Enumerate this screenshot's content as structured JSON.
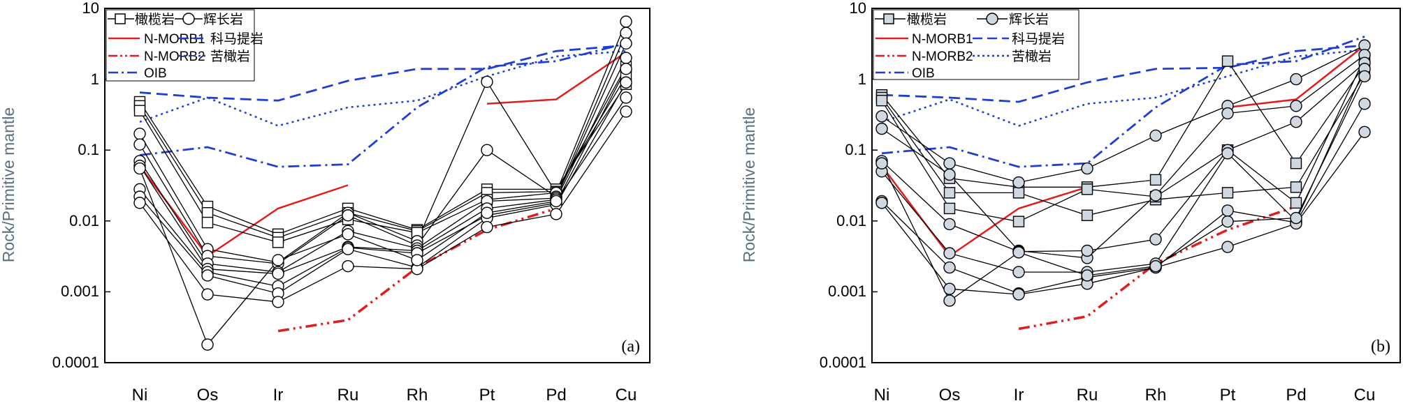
{
  "colors": {
    "axis": "#000000",
    "sample_line": "#000000",
    "marker_fill_a": "#ffffff",
    "marker_fill_b": "#d0d8e2",
    "nmorb": "#e21d1d",
    "blue": "#1f3fd0",
    "ylabel": "#5a6e7f"
  },
  "chart_data": [
    {
      "id": "a",
      "panel_label": "(a)",
      "type": "line",
      "ylabel": "Rock/Primitive mantle",
      "yscale": "log",
      "ylim": [
        0.0001,
        10
      ],
      "yticks": [
        "10",
        "1",
        "0.1",
        "0.01",
        "0.001",
        "0.0001"
      ],
      "categories": [
        "Ni",
        "Os",
        "Ir",
        "Ru",
        "Rh",
        "Pt",
        "Pd",
        "Cu"
      ],
      "legend": [
        {
          "key": "peridotite",
          "label": "橄榄岩",
          "style": "square"
        },
        {
          "key": "gabbro",
          "label": "辉长岩",
          "style": "circle"
        },
        {
          "key": "nmorb1",
          "label": "N-MORB1",
          "style": "red-solid"
        },
        {
          "key": "komatiite",
          "label": "科马提岩",
          "style": "blue-dash"
        },
        {
          "key": "nmorb2",
          "label": "N-MORB2",
          "style": "red-dashdotdot"
        },
        {
          "key": "picrite",
          "label": "苦橄岩",
          "style": "blue-dot"
        },
        {
          "key": "oib",
          "label": "OIB",
          "style": "blue-dashdot"
        }
      ],
      "reference_series": [
        {
          "name": "N-MORB1",
          "style": "red-solid",
          "values": [
            0.06,
            0.0032,
            0.015,
            0.032,
            null,
            0.45,
            0.52,
            2.4
          ]
        },
        {
          "name": "N-MORB2",
          "style": "red-dashdotdot",
          "values": [
            null,
            null,
            0.00028,
            0.0004,
            0.0022,
            0.0075,
            0.015,
            null
          ]
        },
        {
          "name": "科马提岩",
          "style": "blue-dash",
          "values": [
            0.65,
            0.55,
            0.5,
            0.95,
            1.4,
            1.4,
            2.5,
            3.0
          ]
        },
        {
          "name": "苦橄岩",
          "style": "blue-dot",
          "values": [
            0.25,
            0.55,
            0.22,
            0.4,
            0.5,
            1.1,
            2.1,
            2.5
          ]
        },
        {
          "name": "OIB",
          "style": "blue-dashdot",
          "values": [
            0.085,
            0.11,
            0.058,
            0.063,
            0.4,
            1.5,
            1.8,
            3.2
          ]
        }
      ],
      "samples": [
        {
          "rock": "橄榄岩",
          "marker": "square",
          "values": [
            0.48,
            0.016,
            0.0065,
            0.015,
            0.0075,
            0.028,
            0.028,
            0.85
          ]
        },
        {
          "rock": "橄榄岩",
          "marker": "square",
          "values": [
            0.42,
            0.013,
            0.0058,
            0.013,
            0.0072,
            0.025,
            0.026,
            1.1
          ]
        },
        {
          "rock": "橄榄岩",
          "marker": "square",
          "values": [
            0.36,
            0.0095,
            0.005,
            0.0105,
            0.0068,
            0.02,
            0.025,
            1.5
          ]
        },
        {
          "rock": "辉长岩",
          "marker": "circle",
          "values": [
            0.17,
            0.004,
            0.0026,
            0.013,
            0.0052,
            0.92,
            0.025,
            6.5
          ]
        },
        {
          "rock": "辉长岩",
          "marker": "circle",
          "values": [
            0.12,
            0.0032,
            0.0025,
            0.012,
            0.0045,
            0.1,
            0.022,
            4.5
          ]
        },
        {
          "rock": "辉长岩",
          "marker": "circle",
          "values": [
            0.07,
            0.0025,
            0.0019,
            0.0072,
            0.0041,
            0.019,
            0.021,
            3.2
          ]
        },
        {
          "rock": "辉长岩",
          "marker": "circle",
          "values": [
            0.06,
            0.0021,
            0.0018,
            0.0043,
            0.0038,
            0.015,
            0.02,
            2.0
          ]
        },
        {
          "rock": "辉长岩",
          "marker": "circle",
          "values": [
            0.028,
            0.0019,
            0.0012,
            0.0042,
            0.0035,
            0.012,
            0.018,
            1.4
          ]
        },
        {
          "rock": "辉长岩",
          "marker": "circle",
          "values": [
            0.022,
            0.0017,
            0.00095,
            0.004,
            0.0022,
            0.011,
            0.017,
            0.9
          ]
        },
        {
          "rock": "辉长岩",
          "marker": "circle",
          "values": [
            0.018,
            0.00092,
            0.00072,
            0.0023,
            0.0021,
            0.0082,
            0.0125,
            0.35
          ]
        },
        {
          "rock": "辉长岩",
          "marker": "circle",
          "values": [
            0.055,
            0.00018,
            0.0028,
            0.0065,
            0.0028,
            0.013,
            0.019,
            0.55
          ]
        }
      ]
    },
    {
      "id": "b",
      "panel_label": "(b)",
      "type": "line",
      "ylabel": "Rock/Primitive mantle",
      "yscale": "log",
      "ylim": [
        0.0001,
        10
      ],
      "yticks": [
        "10",
        "1",
        "0.1",
        "0.01",
        "0.001",
        "0.0001"
      ],
      "categories": [
        "Ni",
        "Os",
        "Ir",
        "Ru",
        "Rh",
        "Pt",
        "Pd",
        "Cu"
      ],
      "legend": [
        {
          "key": "peridotite",
          "label": "橄榄岩",
          "style": "square"
        },
        {
          "key": "gabbro",
          "label": "辉长岩",
          "style": "circle"
        },
        {
          "key": "nmorb1",
          "label": "N-MORB1",
          "style": "red-solid"
        },
        {
          "key": "komatiite",
          "label": "科马提岩",
          "style": "blue-dash"
        },
        {
          "key": "nmorb2",
          "label": "N-MORB2",
          "style": "red-dashdotdot"
        },
        {
          "key": "picrite",
          "label": "苦橄岩",
          "style": "blue-dot"
        },
        {
          "key": "oib",
          "label": "OIB",
          "style": "blue-dashdot"
        }
      ],
      "reference_series": [
        {
          "name": "N-MORB1",
          "style": "red-solid",
          "values": [
            0.06,
            0.0032,
            0.015,
            0.03,
            null,
            0.4,
            0.52,
            3.0
          ]
        },
        {
          "name": "N-MORB2",
          "style": "red-dashdotdot",
          "values": [
            null,
            null,
            0.0003,
            0.00045,
            0.0025,
            0.0075,
            0.016,
            null
          ]
        },
        {
          "name": "科马提岩",
          "style": "blue-dash",
          "values": [
            0.6,
            0.55,
            0.48,
            0.9,
            1.4,
            1.45,
            2.5,
            3.0
          ]
        },
        {
          "name": "苦橄岩",
          "style": "blue-dot",
          "values": [
            0.25,
            0.52,
            0.22,
            0.45,
            0.55,
            1.1,
            2.1,
            2.6
          ]
        },
        {
          "name": "OIB",
          "style": "blue-dashdot",
          "values": [
            0.09,
            0.11,
            0.058,
            0.065,
            0.4,
            1.6,
            1.8,
            4.0
          ]
        }
      ],
      "samples": [
        {
          "rock": "橄榄岩",
          "marker": "square",
          "values": [
            0.6,
            0.04,
            0.03,
            0.03,
            0.038,
            1.8,
            0.065,
            1.6
          ]
        },
        {
          "rock": "橄榄岩",
          "marker": "square",
          "values": [
            0.55,
            0.025,
            0.025,
            0.012,
            0.02,
            0.025,
            0.03,
            1.2
          ]
        },
        {
          "rock": "橄榄岩",
          "marker": "square",
          "values": [
            0.5,
            0.015,
            0.0098,
            0.028,
            0.022,
            0.1,
            0.018,
            2.0
          ]
        },
        {
          "rock": "辉长岩",
          "marker": "circle",
          "values": [
            0.3,
            0.065,
            0.035,
            0.055,
            0.16,
            0.42,
            1.0,
            3.0
          ]
        },
        {
          "rock": "辉长岩",
          "marker": "circle",
          "values": [
            0.2,
            0.045,
            0.0038,
            0.003,
            0.023,
            0.33,
            0.42,
            2.2
          ]
        },
        {
          "rock": "辉长岩",
          "marker": "circle",
          "values": [
            0.07,
            0.009,
            0.0037,
            0.0038,
            0.0055,
            0.1,
            0.25,
            1.7
          ]
        },
        {
          "rock": "辉长岩",
          "marker": "circle",
          "values": [
            0.05,
            0.0035,
            0.0019,
            0.0019,
            0.0025,
            0.09,
            0.01,
            1.4
          ]
        },
        {
          "rock": "辉长岩",
          "marker": "circle",
          "values": [
            0.019,
            0.0022,
            0.00095,
            0.0016,
            0.0022,
            0.014,
            0.0095,
            0.45
          ]
        },
        {
          "rock": "辉长岩",
          "marker": "circle",
          "values": [
            0.018,
            0.0011,
            0.00092,
            0.0013,
            0.0022,
            0.0043,
            0.0092,
            0.18
          ]
        },
        {
          "rock": "辉长岩",
          "marker": "circle",
          "values": [
            0.065,
            0.00075,
            0.0036,
            0.0017,
            0.0023,
            0.0098,
            0.011,
            1.1
          ]
        }
      ]
    }
  ]
}
